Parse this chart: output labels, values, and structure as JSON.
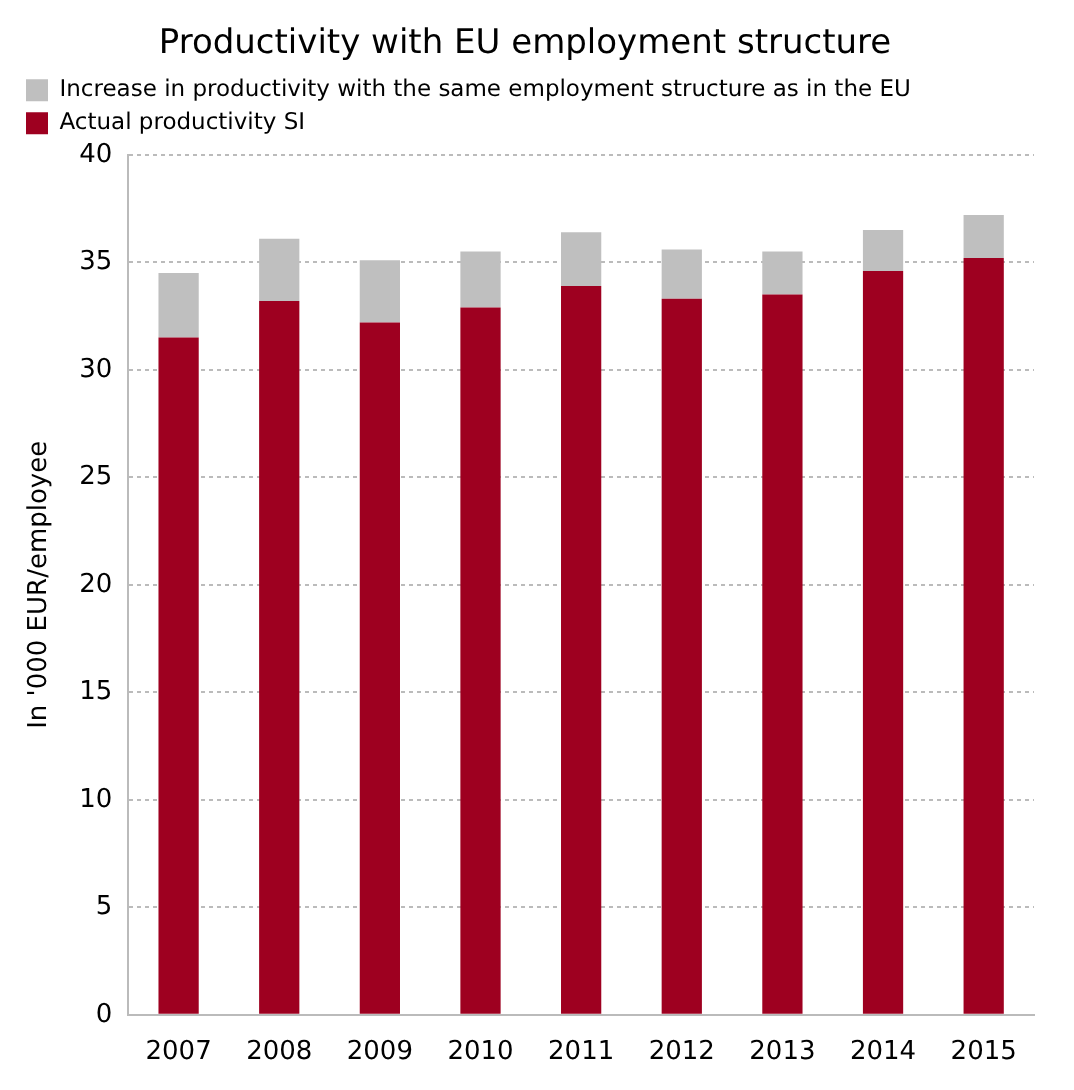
{
  "chart_data": {
    "type": "bar",
    "title": "Productivity with EU employment structure",
    "ylabel": "In '000 EUR/employee",
    "categories": [
      "2007",
      "2008",
      "2009",
      "2010",
      "2011",
      "2012",
      "2013",
      "2014",
      "2015"
    ],
    "stacked": true,
    "series": [
      {
        "name": "Actual productivity SI",
        "color": "#9e0020",
        "values": [
          31.5,
          33.2,
          32.2,
          32.9,
          33.9,
          33.3,
          33.5,
          34.6,
          35.2
        ]
      },
      {
        "name": "Increase in productivity with the same employment structure as in the EU",
        "color": "#bfbfbf",
        "values": [
          3.0,
          2.9,
          2.9,
          2.6,
          2.5,
          2.3,
          2.0,
          1.9,
          2.0
        ]
      }
    ],
    "ylim": [
      0,
      40
    ],
    "yticks": [
      0,
      5,
      10,
      15,
      20,
      25,
      30,
      35,
      40
    ],
    "grid": "y",
    "legend": "top"
  }
}
